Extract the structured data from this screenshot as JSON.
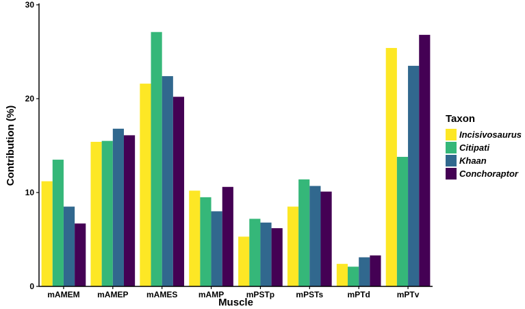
{
  "chart_data": {
    "type": "bar",
    "xlabel": "Muscle",
    "ylabel": "Contribution (%)",
    "ylim": [
      0,
      30
    ],
    "yticks": [
      0,
      10,
      20,
      30
    ],
    "grid": false,
    "legend_position": "right",
    "legend_title": "Taxon",
    "categories": [
      "mAMEM",
      "mAMEP",
      "mAMES",
      "mAMP",
      "mPSTp",
      "mPSTs",
      "mPTd",
      "mPTv"
    ],
    "series": [
      {
        "name": "Incisivosaurus",
        "color": "#FDE725",
        "values": [
          11.2,
          15.4,
          21.6,
          10.2,
          5.3,
          8.5,
          2.4,
          25.4
        ]
      },
      {
        "name": "Citipati",
        "color": "#35B779",
        "values": [
          13.5,
          15.5,
          27.1,
          9.5,
          7.2,
          11.4,
          2.1,
          13.8
        ]
      },
      {
        "name": "Khaan",
        "color": "#31688E",
        "values": [
          8.5,
          16.8,
          22.4,
          8.0,
          6.8,
          10.7,
          3.1,
          23.5
        ]
      },
      {
        "name": "Conchoraptor",
        "color": "#440154",
        "values": [
          6.7,
          16.1,
          20.2,
          10.6,
          6.2,
          10.1,
          3.3,
          26.8
        ]
      }
    ]
  }
}
